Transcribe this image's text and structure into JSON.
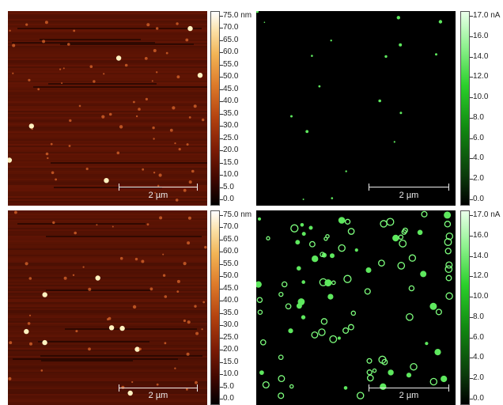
{
  "scale_bar_label": "2 µm",
  "colorbars": {
    "topography": {
      "ticks": [
        "75.0 nm",
        "70.0",
        "65.0",
        "60.0",
        "55.0",
        "50.0",
        "45.0",
        "40.0",
        "35.0",
        "30.0",
        "25.0",
        "20.0",
        "15.0",
        "10.0",
        "5.0",
        "0.0"
      ]
    },
    "current": {
      "ticks": [
        "17.0 nA",
        "16.0",
        "14.0",
        "12.0",
        "10.0",
        "8.0",
        "6.0",
        "4.0",
        "2.0",
        "0.0"
      ]
    }
  },
  "colors": {
    "topo_background": "#5a1204",
    "current_background": "#000000",
    "current_spot": "#7dff7d",
    "topo_spot": "#fff2c0"
  }
}
